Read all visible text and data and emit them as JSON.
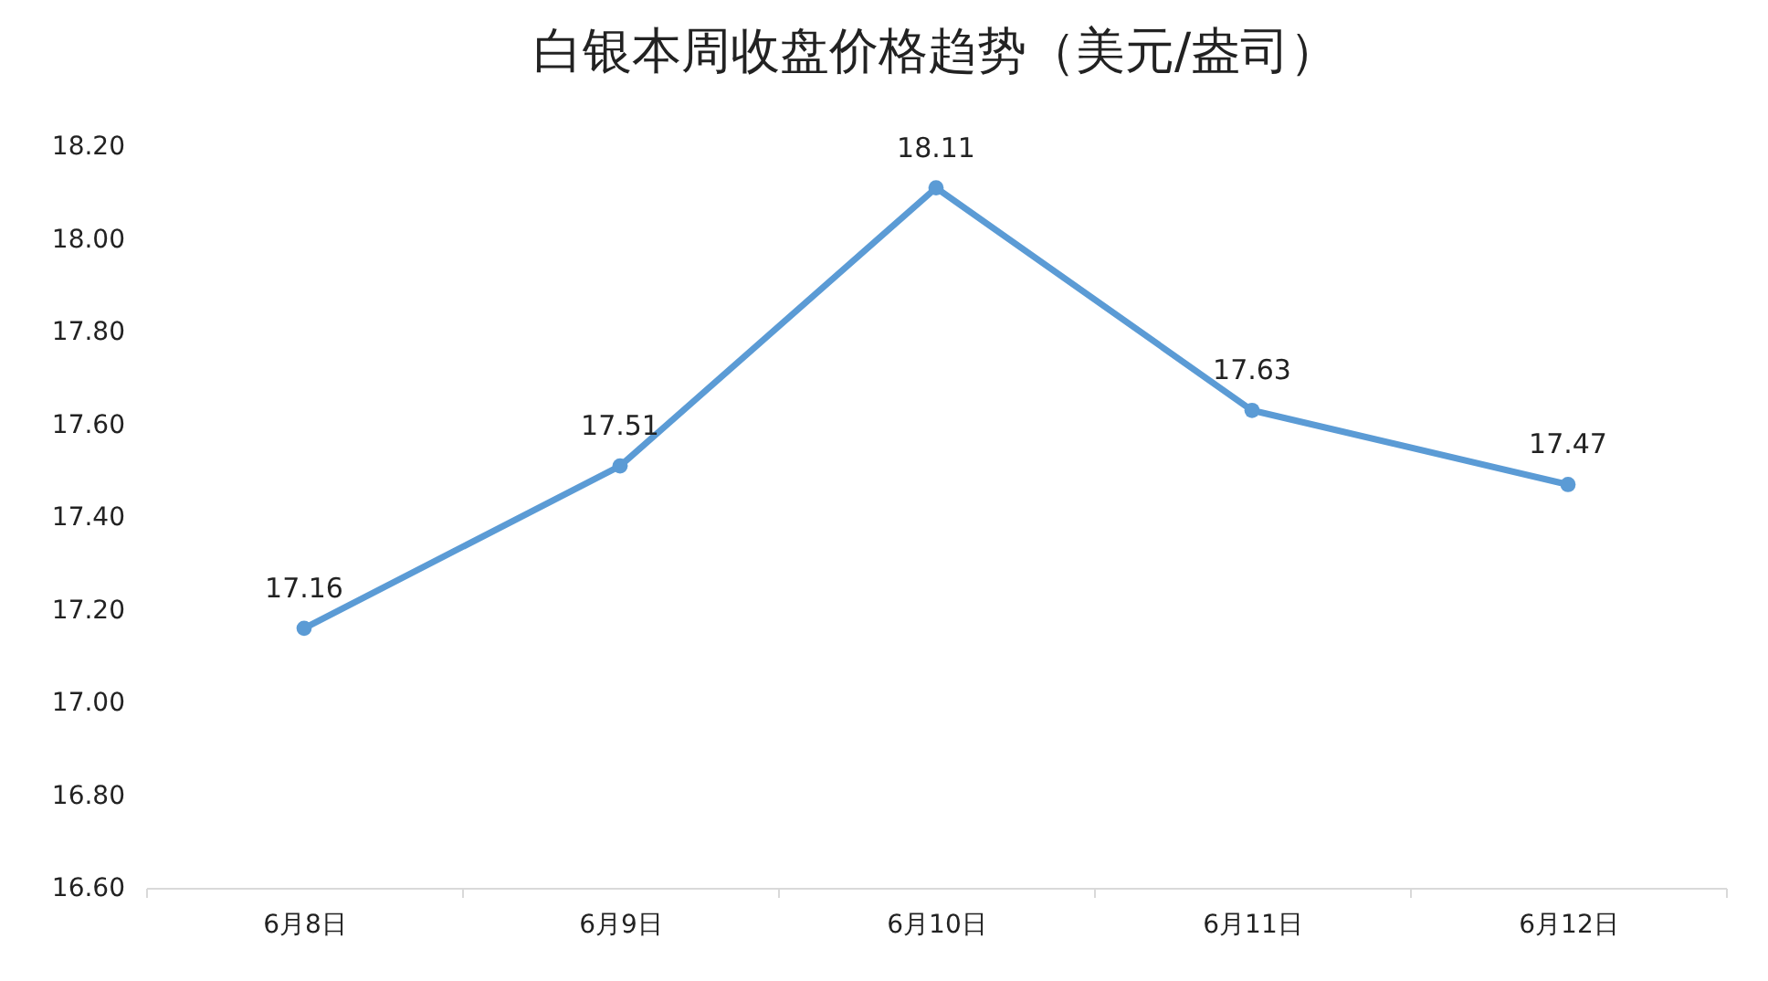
{
  "chart_data": {
    "type": "line",
    "title": "白银本周收盘价格趋势（美元/盎司）",
    "categories": [
      "6月8日",
      "6月9日",
      "6月10日",
      "6月11日",
      "6月12日"
    ],
    "series": [
      {
        "color": "#5b9bd5",
        "values": [
          17.16,
          17.51,
          18.11,
          17.63,
          17.47
        ]
      }
    ],
    "ylim": [
      16.6,
      18.2
    ],
    "yticks": [
      {
        "value": 16.6,
        "label": "16.60"
      },
      {
        "value": 16.8,
        "label": "16.80"
      },
      {
        "value": 17.0,
        "label": "17.00"
      },
      {
        "value": 17.2,
        "label": "17.20"
      },
      {
        "value": 17.4,
        "label": "17.40"
      },
      {
        "value": 17.6,
        "label": "17.60"
      },
      {
        "value": 17.8,
        "label": "17.80"
      },
      {
        "value": 18.0,
        "label": "18.00"
      },
      {
        "value": 18.2,
        "label": "18.20"
      }
    ],
    "marker": "circle",
    "data_labels": true,
    "grid": false
  }
}
